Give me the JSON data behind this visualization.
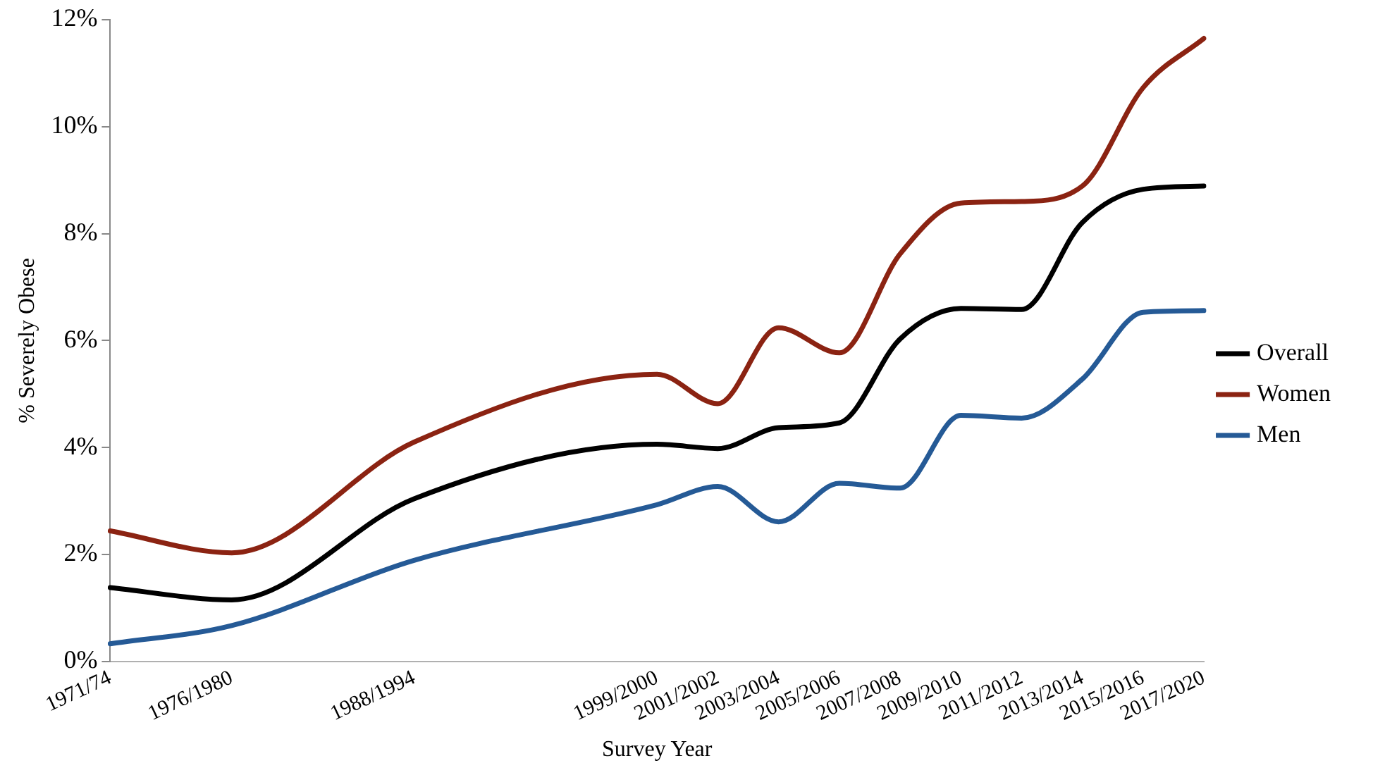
{
  "chart_data": {
    "type": "line",
    "xlabel": "Survey Year",
    "ylabel": "% Severely Obese",
    "categories": [
      "1971/74",
      null,
      "1976/1980",
      null,
      null,
      "1988/1994",
      null,
      null,
      null,
      "1999/2000",
      "2001/2002",
      "2003/2004",
      "2005/2006",
      "2007/2008",
      "2009/2010",
      "2011/2012",
      "2013/2014",
      "2015/2016",
      "2017/2020"
    ],
    "series": [
      {
        "name": "Overall",
        "color": "#000000",
        "values": [
          1.38,
          null,
          1.15,
          null,
          null,
          3.04,
          null,
          null,
          null,
          4.06,
          3.98,
          4.37,
          4.46,
          6.03,
          6.6,
          6.58,
          8.21,
          8.83,
          8.89
        ]
      },
      {
        "name": "Women",
        "color": "#8b2312",
        "values": [
          2.44,
          null,
          2.03,
          null,
          null,
          4.1,
          null,
          null,
          null,
          5.37,
          4.82,
          6.24,
          5.77,
          7.62,
          8.57,
          8.6,
          8.89,
          10.73,
          11.65
        ]
      },
      {
        "name": "Men",
        "color": "#255a96",
        "values": [
          0.33,
          null,
          0.67,
          null,
          null,
          1.89,
          null,
          null,
          null,
          2.93,
          3.27,
          2.61,
          3.33,
          3.24,
          4.6,
          4.55,
          5.28,
          6.53,
          6.56
        ]
      }
    ],
    "ylim": [
      0,
      12
    ],
    "yticks": [
      {
        "value": 0,
        "label": "0%"
      },
      {
        "value": 2,
        "label": "2%"
      },
      {
        "value": 4,
        "label": "4%"
      },
      {
        "value": 6,
        "label": "6%"
      },
      {
        "value": 8,
        "label": "8%"
      },
      {
        "value": 10,
        "label": "10%"
      },
      {
        "value": 12,
        "label": "12%"
      }
    ],
    "grid": false,
    "legend": "right",
    "marker": "none",
    "line_style": "solid"
  }
}
